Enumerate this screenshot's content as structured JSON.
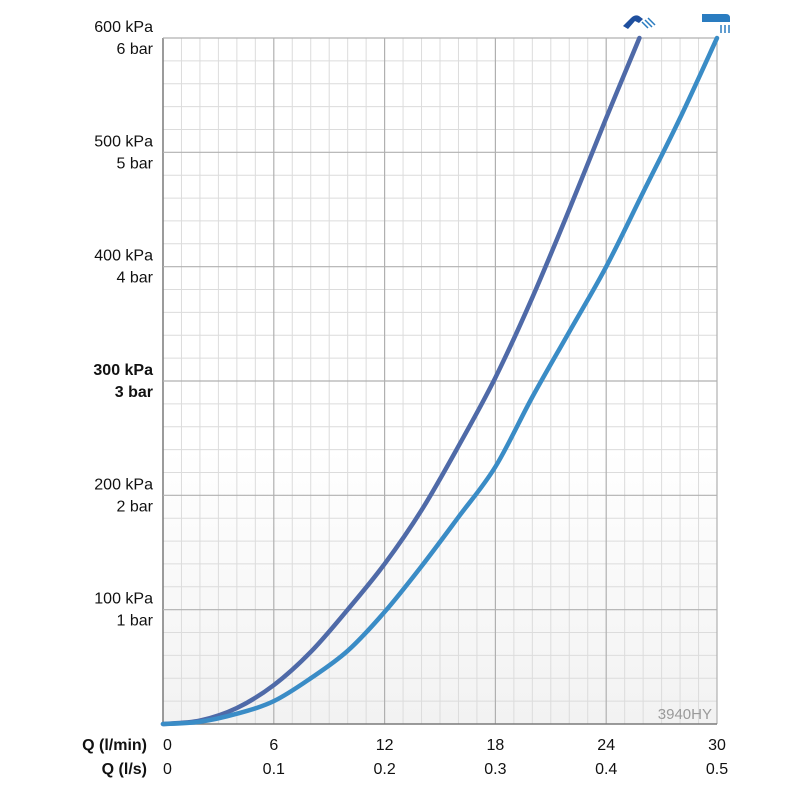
{
  "chart_data": {
    "type": "line",
    "x_unit_primary": "Q (l/min)",
    "x_unit_secondary": "Q (l/s)",
    "x_ticks_primary": [
      "0",
      "6",
      "12",
      "18",
      "24",
      "30"
    ],
    "x_ticks_secondary": [
      "0",
      "0.1",
      "0.2",
      "0.3",
      "0.4",
      "0.5"
    ],
    "xlim": [
      0,
      30
    ],
    "ylim": [
      0,
      600
    ],
    "y_ticks": [
      {
        "value": 100,
        "kpa": "100 kPa",
        "bar": "1 bar",
        "bold": false
      },
      {
        "value": 200,
        "kpa": "200 kPa",
        "bar": "2 bar",
        "bold": false
      },
      {
        "value": 300,
        "kpa": "300 kPa",
        "bar": "3 bar",
        "bold": true
      },
      {
        "value": 400,
        "kpa": "400 kPa",
        "bar": "4 bar",
        "bold": false
      },
      {
        "value": 500,
        "kpa": "500 kPa",
        "bar": "5 bar",
        "bold": false
      },
      {
        "value": 600,
        "kpa": "600 kPa",
        "bar": "6 bar",
        "bold": false
      }
    ],
    "grid": true,
    "model_label": "3940HY",
    "series": [
      {
        "icon": "hand-shower-icon",
        "color": "#4f6aa8",
        "x": [
          0,
          2,
          4,
          6,
          8,
          10,
          12,
          14,
          16,
          18,
          20,
          22,
          24,
          25.8
        ],
        "y": [
          0,
          3,
          14,
          34,
          63,
          100,
          140,
          187,
          243,
          303,
          373,
          450,
          530,
          600
        ]
      },
      {
        "icon": "overhead-shower-icon",
        "color": "#3a8cc6",
        "x": [
          0,
          2,
          4,
          6,
          8,
          10,
          12,
          14,
          16,
          18,
          20,
          22,
          24,
          26,
          28,
          30
        ],
        "y": [
          0,
          2,
          9,
          20,
          40,
          64,
          98,
          138,
          181,
          225,
          286,
          343,
          400,
          465,
          530,
          600
        ]
      }
    ]
  }
}
